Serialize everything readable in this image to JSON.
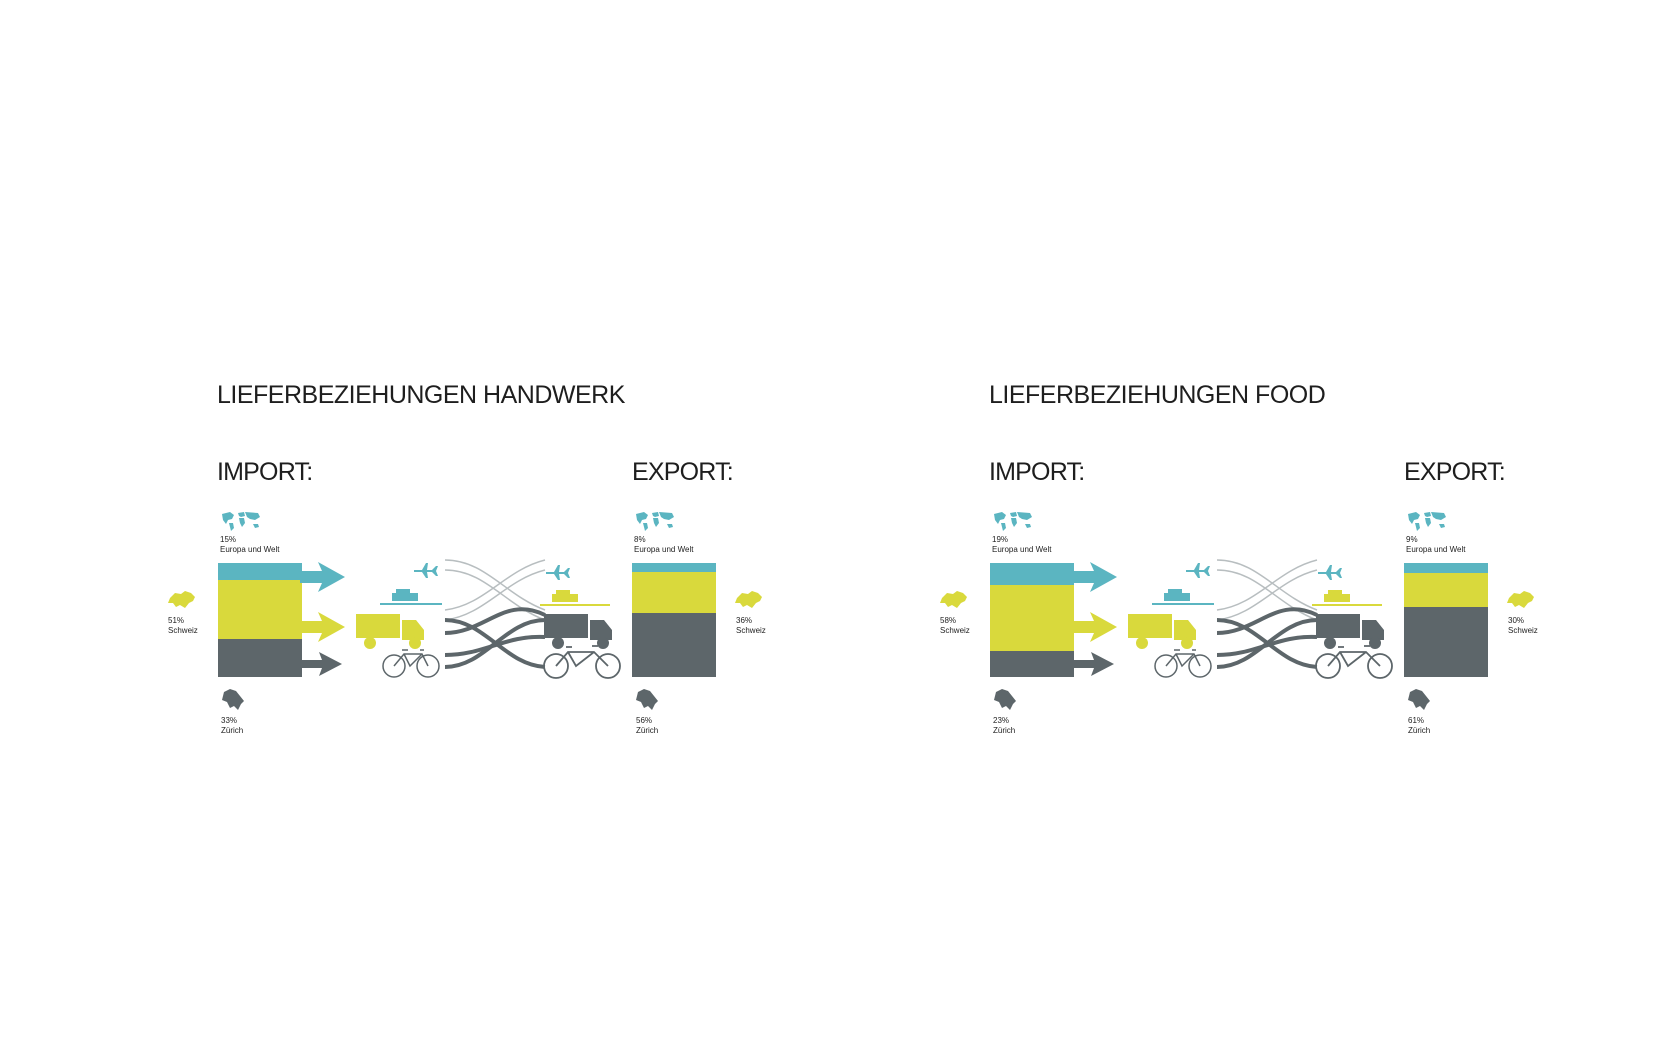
{
  "colors": {
    "europa_welt": "#5bb5c1",
    "schweiz": "#d9d93c",
    "zuerich": "#5d666a"
  },
  "panels": [
    {
      "title": "LIEFERBEZIEHUNGEN HANDWERK",
      "import": {
        "heading": "IMPORT:",
        "welt": {
          "percent": "15%",
          "label": "Europa und Welt",
          "value": 15
        },
        "schweiz": {
          "percent": "51%",
          "label": "Schweiz",
          "value": 51
        },
        "zuerich": {
          "percent": "33%",
          "label": "Zürich",
          "value": 33
        }
      },
      "export": {
        "heading": "EXPORT:",
        "welt": {
          "percent": "8%",
          "label": "Europa und Welt",
          "value": 8
        },
        "schweiz": {
          "percent": "36%",
          "label": "Schweiz",
          "value": 36
        },
        "zuerich": {
          "percent": "56%",
          "label": "Zürich",
          "value": 56
        }
      }
    },
    {
      "title": "LIEFERBEZIEHUNGEN FOOD",
      "import": {
        "heading": "IMPORT:",
        "welt": {
          "percent": "19%",
          "label": "Europa und Welt",
          "value": 19
        },
        "schweiz": {
          "percent": "58%",
          "label": "Schweiz",
          "value": 58
        },
        "zuerich": {
          "percent": "23%",
          "label": "Zürich",
          "value": 23
        }
      },
      "export": {
        "heading": "EXPORT:",
        "welt": {
          "percent": "9%",
          "label": "Europa und Welt",
          "value": 9
        },
        "schweiz": {
          "percent": "30%",
          "label": "Schweiz",
          "value": 30
        },
        "zuerich": {
          "percent": "61%",
          "label": "Zürich",
          "value": 61
        }
      }
    }
  ]
}
